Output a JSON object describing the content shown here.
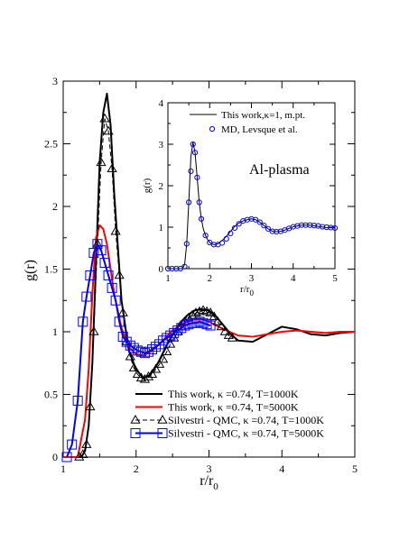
{
  "chart_data": [
    {
      "type": "line",
      "xlabel": "r/r",
      "xlabel_sub": "0",
      "ylabel": "g(r)",
      "xlim": [
        1,
        5
      ],
      "ylim": [
        0,
        3
      ],
      "xticks": [
        1,
        2,
        3,
        4,
        5
      ],
      "yticks": [
        0,
        0.5,
        1,
        1.5,
        2,
        2.5,
        3
      ],
      "xtick_labels": [
        "1",
        "2",
        "3",
        "4",
        "5"
      ],
      "ytick_labels": [
        "0",
        "0.5",
        "1",
        "1.5",
        "2",
        "2.5",
        "3"
      ],
      "grid": false,
      "legend_position": "bottom-right",
      "series": [
        {
          "name": "This work, κ =0.74, T=1000K",
          "color": "#000000",
          "style": "solid",
          "marker": "none",
          "x": [
            1.0,
            1.25,
            1.3,
            1.35,
            1.4,
            1.45,
            1.5,
            1.55,
            1.6,
            1.65,
            1.7,
            1.8,
            1.9,
            2.0,
            2.1,
            2.2,
            2.3,
            2.4,
            2.5,
            2.6,
            2.7,
            2.8,
            2.9,
            3.0,
            3.1,
            3.2,
            3.3,
            3.4,
            3.6,
            3.8,
            4.0,
            4.2,
            4.4,
            4.6,
            4.8,
            5.0
          ],
          "y": [
            0.0,
            0.0,
            0.05,
            0.25,
            0.75,
            1.55,
            2.35,
            2.75,
            2.9,
            2.65,
            2.1,
            1.25,
            0.85,
            0.7,
            0.63,
            0.66,
            0.75,
            0.87,
            0.98,
            1.07,
            1.13,
            1.17,
            1.18,
            1.17,
            1.12,
            1.05,
            0.98,
            0.93,
            0.92,
            0.98,
            1.04,
            1.02,
            0.98,
            0.97,
            0.99,
            1.0
          ]
        },
        {
          "name": "This work, κ =0.74, T=5000K",
          "color": "#ff0000",
          "style": "solid",
          "marker": "none",
          "x": [
            1.0,
            1.2,
            1.3,
            1.35,
            1.4,
            1.45,
            1.5,
            1.55,
            1.6,
            1.65,
            1.7,
            1.8,
            1.9,
            2.0,
            2.1,
            2.2,
            2.3,
            2.4,
            2.5,
            2.6,
            2.7,
            2.8,
            2.9,
            3.0,
            3.1,
            3.2,
            3.4,
            3.6,
            3.8,
            4.0,
            4.2,
            4.4,
            4.6,
            4.8,
            5.0
          ],
          "y": [
            0.0,
            0.0,
            0.3,
            0.7,
            1.3,
            1.75,
            1.85,
            1.82,
            1.7,
            1.5,
            1.3,
            1.03,
            0.88,
            0.82,
            0.81,
            0.84,
            0.89,
            0.95,
            1.01,
            1.05,
            1.08,
            1.1,
            1.1,
            1.08,
            1.05,
            1.02,
            0.97,
            0.96,
            0.98,
            1.0,
            1.01,
            1.0,
            0.99,
            1.0,
            1.0
          ]
        },
        {
          "name": "Silvestri - QMC, κ  =0.74, T=1000K",
          "color": "#000000",
          "style": "dashed",
          "marker": "triangle",
          "x": [
            1.22,
            1.27,
            1.32,
            1.37,
            1.42,
            1.47,
            1.52,
            1.57,
            1.62,
            1.67,
            1.72,
            1.77,
            1.82,
            1.87,
            1.92,
            1.97,
            2.02,
            2.07,
            2.12,
            2.17,
            2.22,
            2.27,
            2.32,
            2.37,
            2.42,
            2.47,
            2.52,
            2.57,
            2.62,
            2.67,
            2.72,
            2.77,
            2.82,
            2.87,
            2.92,
            2.97,
            3.02,
            3.07,
            3.12,
            3.17,
            3.22,
            3.27,
            3.32
          ],
          "y": [
            0.0,
            0.02,
            0.1,
            0.4,
            1.0,
            1.7,
            2.35,
            2.7,
            2.6,
            2.3,
            1.8,
            1.45,
            1.15,
            0.92,
            0.8,
            0.71,
            0.66,
            0.63,
            0.62,
            0.64,
            0.66,
            0.7,
            0.74,
            0.78,
            0.84,
            0.9,
            0.95,
            1.0,
            1.04,
            1.08,
            1.11,
            1.13,
            1.15,
            1.16,
            1.17,
            1.16,
            1.15,
            1.12,
            1.08,
            1.04,
            1.0,
            0.97,
            0.95
          ]
        },
        {
          "name": "Silvestri - QMC, κ  =0.74, T=5000K",
          "color": "#0000ff",
          "style": "solid",
          "marker": "square",
          "x": [
            1.05,
            1.12,
            1.2,
            1.27,
            1.32,
            1.37,
            1.42,
            1.47,
            1.52,
            1.57,
            1.62,
            1.67,
            1.72,
            1.77,
            1.82,
            1.87,
            1.92,
            1.97,
            2.02,
            2.07,
            2.12,
            2.17,
            2.22,
            2.27,
            2.32,
            2.37,
            2.42,
            2.47,
            2.52,
            2.57,
            2.62,
            2.67,
            2.72,
            2.77,
            2.82,
            2.87,
            2.92,
            2.97,
            3.02
          ],
          "y": [
            0.0,
            0.1,
            0.45,
            1.08,
            1.28,
            1.45,
            1.63,
            1.7,
            1.65,
            1.55,
            1.45,
            1.35,
            1.25,
            1.08,
            0.96,
            0.92,
            0.89,
            0.87,
            0.85,
            0.84,
            0.83,
            0.84,
            0.86,
            0.88,
            0.9,
            0.93,
            0.95,
            0.97,
            0.99,
            1.01,
            1.03,
            1.05,
            1.06,
            1.07,
            1.07,
            1.08,
            1.07,
            1.06,
            1.05
          ]
        }
      ]
    },
    {
      "type": "line",
      "annotation": "Al-plasma",
      "xlabel": "r/r",
      "xlabel_sub": "0",
      "ylabel": "g(r)",
      "xlim": [
        1,
        5
      ],
      "ylim": [
        0,
        4
      ],
      "xticks": [
        1,
        2,
        3,
        4,
        5
      ],
      "yticks": [
        0,
        1,
        2,
        3,
        4
      ],
      "xtick_labels": [
        "1",
        "2",
        "3",
        "4",
        "5"
      ],
      "ytick_labels": [
        "0",
        "1",
        "2",
        "3",
        "4"
      ],
      "grid": false,
      "legend_position": "top-right",
      "series": [
        {
          "name": "This work,κ=1, m.pt.",
          "color": "#000000",
          "style": "solid",
          "marker": "none",
          "x": [
            1.0,
            1.35,
            1.4,
            1.45,
            1.5,
            1.55,
            1.6,
            1.65,
            1.7,
            1.75,
            1.8,
            1.85,
            1.9,
            1.95,
            2.0,
            2.05,
            2.1,
            2.15,
            2.2,
            2.3,
            2.4,
            2.5,
            2.6,
            2.7,
            2.8,
            2.9,
            3.0,
            3.1,
            3.2,
            3.3,
            3.4,
            3.5,
            3.6,
            3.7,
            3.8,
            3.9,
            4.0,
            4.2,
            4.4,
            4.6,
            4.8,
            5.0
          ],
          "y": [
            0.0,
            0.0,
            0.1,
            0.6,
            1.6,
            2.7,
            3.05,
            2.8,
            2.2,
            1.6,
            1.2,
            0.95,
            0.8,
            0.7,
            0.63,
            0.6,
            0.58,
            0.58,
            0.6,
            0.68,
            0.78,
            0.9,
            1.02,
            1.1,
            1.15,
            1.18,
            1.2,
            1.18,
            1.12,
            1.04,
            0.96,
            0.9,
            0.89,
            0.9,
            0.93,
            0.97,
            1.01,
            1.05,
            1.05,
            1.02,
            0.99,
            0.98
          ]
        },
        {
          "name": "MD, Levsque et al.",
          "color": "#0000ff",
          "style": "none",
          "marker": "circle",
          "x": [
            1.0,
            1.1,
            1.2,
            1.3,
            1.4,
            1.45,
            1.5,
            1.55,
            1.6,
            1.65,
            1.7,
            1.75,
            1.8,
            1.9,
            2.0,
            2.1,
            2.2,
            2.3,
            2.4,
            2.5,
            2.6,
            2.7,
            2.8,
            2.9,
            3.0,
            3.1,
            3.2,
            3.3,
            3.4,
            3.5,
            3.6,
            3.7,
            3.8,
            3.9,
            4.0,
            4.1,
            4.2,
            4.3,
            4.4,
            4.5,
            4.6,
            4.7,
            4.8,
            4.9,
            5.0
          ],
          "y": [
            0.0,
            0.0,
            0.0,
            0.0,
            0.05,
            0.6,
            1.6,
            2.35,
            3.0,
            2.8,
            2.2,
            1.6,
            1.2,
            0.8,
            0.63,
            0.58,
            0.58,
            0.62,
            0.72,
            0.85,
            0.98,
            1.08,
            1.15,
            1.18,
            1.2,
            1.18,
            1.12,
            1.04,
            0.96,
            0.9,
            0.89,
            0.9,
            0.93,
            0.97,
            1.01,
            1.03,
            1.05,
            1.05,
            1.05,
            1.04,
            1.03,
            1.01,
            1.0,
            0.99,
            0.98
          ]
        }
      ]
    }
  ]
}
